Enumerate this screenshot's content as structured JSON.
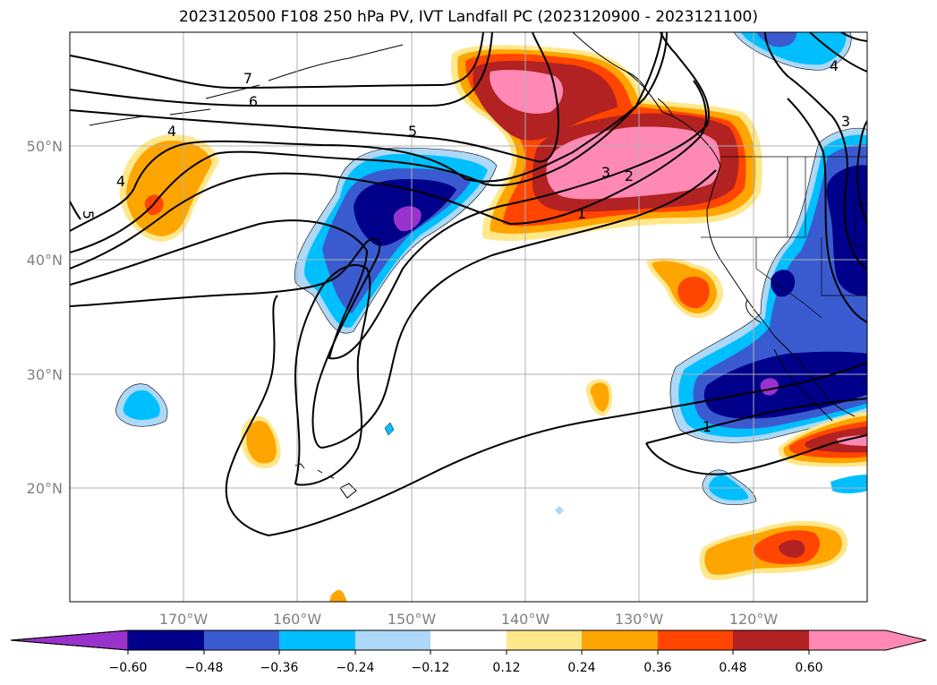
{
  "title": "2023120500 F108 250 hPa PV, IVT Landfall PC (2023120900 - 2023121100)",
  "map": {
    "lat_labels": [
      "50°N",
      "40°N",
      "30°N",
      "20°N"
    ],
    "lon_labels": [
      "170°W",
      "160°W",
      "150°W",
      "140°W",
      "130°W",
      "120°W"
    ],
    "extent": {
      "lon": [
        -180,
        -110
      ],
      "lat": [
        10,
        60
      ]
    }
  },
  "colorbar": {
    "ticks": [
      "−0.60",
      "−0.48",
      "−0.36",
      "−0.24",
      "−0.12",
      "0.12",
      "0.24",
      "0.36",
      "0.48",
      "0.60"
    ],
    "colors": [
      "#9932cc",
      "#00008b",
      "#3a5bd0",
      "#00bfff",
      "#add8f7",
      "#ffffff",
      "#ffe88c",
      "#ffa500",
      "#ff4500",
      "#b22222",
      "#ff88b4"
    ]
  },
  "pv_contours": [
    "1",
    "2",
    "3",
    "4",
    "5",
    "6",
    "7"
  ]
}
